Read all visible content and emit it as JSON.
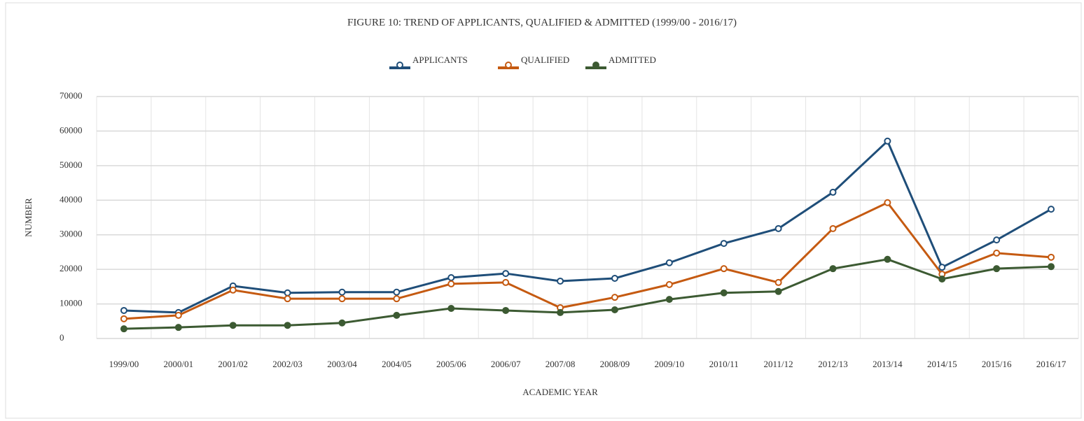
{
  "chart_data": {
    "type": "line",
    "title": "FIGURE 10: TREND OF APPLICANTS, QUALIFIED & ADMITTED (1999/00 - 2016/17)",
    "xlabel": "ACADEMIC YEAR",
    "ylabel": "NUMBER",
    "categories": [
      "1999/00",
      "2000/01",
      "2001/02",
      "2002/03",
      "2003/04",
      "2004/05",
      "2005/06",
      "2006/07",
      "2007/08",
      "2008/09",
      "2009/10",
      "2010/11",
      "2011/12",
      "2012/13",
      "2013/14",
      "2014/15",
      "2015/16",
      "2016/17"
    ],
    "series": [
      {
        "name": "APPLICANTS",
        "color": "#1f4e79",
        "marker": "open",
        "values": [
          8100,
          7500,
          15200,
          13200,
          13400,
          13400,
          17600,
          18800,
          16600,
          17400,
          21900,
          27500,
          31800,
          42300,
          57100,
          20600,
          28500,
          37400
        ]
      },
      {
        "name": "QUALIFIED",
        "color": "#c55a11",
        "marker": "open",
        "values": [
          5700,
          6700,
          14000,
          11500,
          11500,
          11500,
          15800,
          16200,
          8900,
          11900,
          15600,
          20200,
          16200,
          31800,
          39300,
          18600,
          24700,
          23500
        ]
      },
      {
        "name": "ADMITTED",
        "color": "#3c5a32",
        "marker": "filled",
        "values": [
          2800,
          3200,
          3800,
          3800,
          4500,
          6700,
          8700,
          8100,
          7500,
          8300,
          11300,
          13200,
          13600,
          20200,
          22900,
          17200,
          20200,
          20800
        ]
      }
    ],
    "ylim": [
      0,
      70000
    ],
    "yticks": [
      0,
      10000,
      20000,
      30000,
      40000,
      50000,
      60000,
      70000
    ],
    "grid": true,
    "legend": "top"
  }
}
